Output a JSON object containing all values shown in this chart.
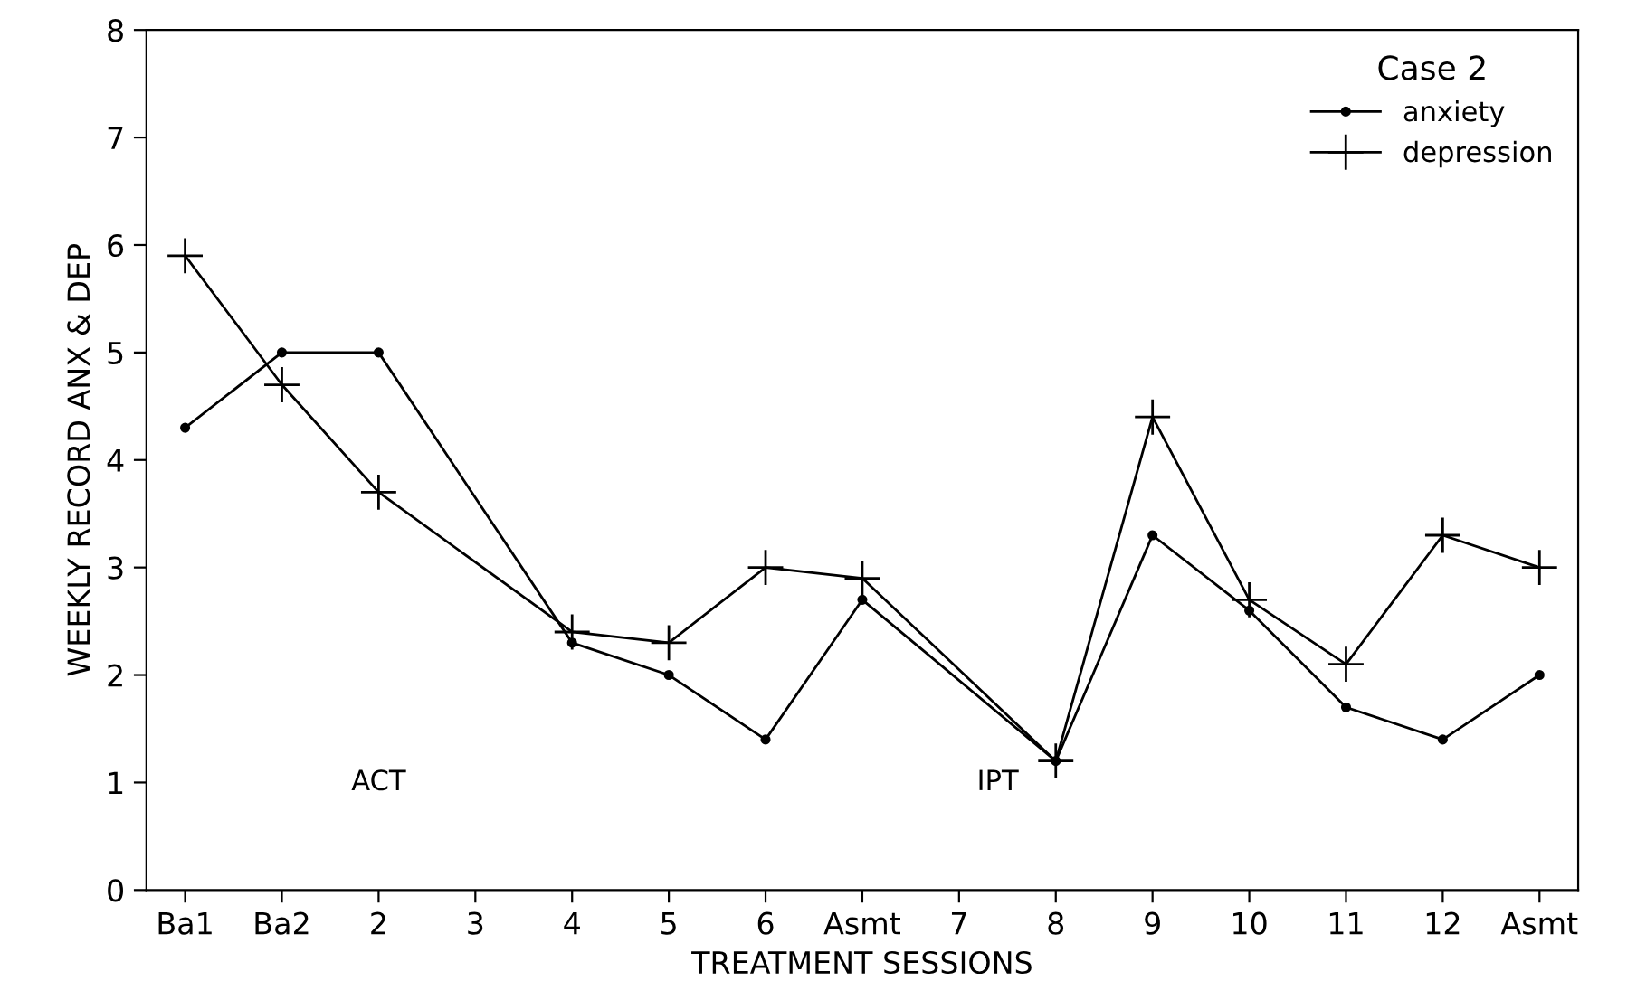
{
  "chart_data": {
    "type": "line",
    "xlabel": "TREATMENT SESSIONS",
    "ylabel": "WEEKLY RECORD ANX & DEP",
    "legend_title": "Case 2",
    "categories": [
      "Ba1",
      "Ba2",
      "2",
      "3",
      "4",
      "5",
      "6",
      "Asmt",
      "7",
      "8",
      "9",
      "10",
      "11",
      "12",
      "Asmt"
    ],
    "series": [
      {
        "name": "anxiety",
        "color": "#000000",
        "marker": "circle",
        "values": [
          4.3,
          5.0,
          5.0,
          null,
          2.3,
          2.0,
          1.4,
          2.7,
          null,
          1.2,
          3.3,
          2.6,
          1.7,
          1.4,
          2.0
        ]
      },
      {
        "name": "depression",
        "color": "#000000",
        "marker": "cross",
        "values": [
          5.9,
          4.7,
          3.7,
          null,
          2.4,
          2.3,
          3.0,
          2.9,
          null,
          1.2,
          4.4,
          2.7,
          2.1,
          3.3,
          3.0
        ]
      }
    ],
    "annotations": [
      "ACT",
      "IPT"
    ],
    "ylim": [
      0,
      8
    ],
    "yticks": [
      0,
      1,
      2,
      3,
      4,
      5,
      6,
      7,
      8
    ],
    "grid": false,
    "legend": "top right",
    "line_style": "solid"
  }
}
